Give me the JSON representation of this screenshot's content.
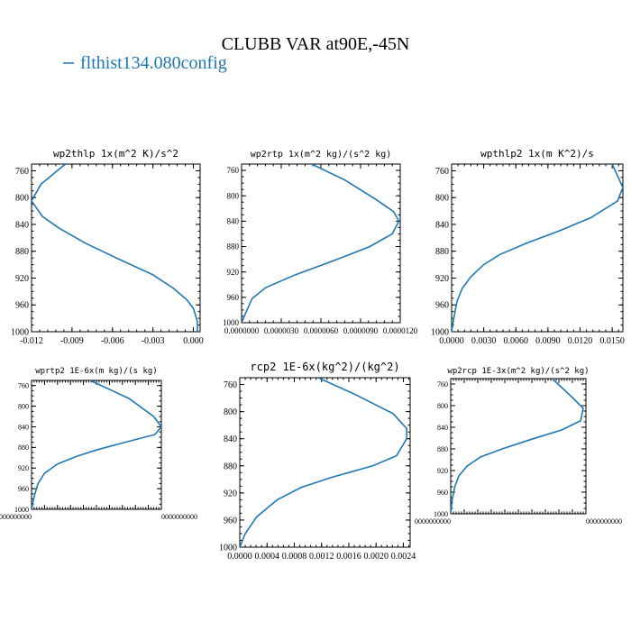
{
  "figure": {
    "title": "CLUBB VAR at90E,-45N",
    "legend": [
      {
        "label": "flthist134.080config",
        "color": "#1f77b4"
      }
    ]
  },
  "chart_data": [
    {
      "type": "line",
      "title": "wp2thlp  1x(m^2 K)/s^2",
      "xlim": [
        -0.012,
        0.0005
      ],
      "ylim": [
        1000,
        750
      ],
      "xticks": [
        -0.012,
        -0.009,
        -0.006,
        -0.003,
        0.0
      ],
      "xtick_labels": [
        "-0.012",
        "-0.009",
        "-0.006",
        "-0.003",
        "0.000"
      ],
      "yticks": [
        760,
        800,
        840,
        880,
        920,
        960,
        1000
      ],
      "ytick_labels": [
        "760",
        "800",
        "840",
        "880",
        "920",
        "960",
        "1000"
      ],
      "series": [
        {
          "color": "#1f77b4",
          "x": [
            -0.0095,
            -0.0113,
            -0.012,
            -0.0112,
            -0.01,
            -0.008,
            -0.0055,
            -0.003,
            -0.0015,
            -0.0005,
            0.0,
            0.0003,
            0.0003
          ],
          "y": [
            750,
            780,
            805,
            828,
            845,
            868,
            892,
            915,
            935,
            952,
            965,
            985,
            1000
          ]
        }
      ]
    },
    {
      "type": "line",
      "title": "wp2rtp  1x(m^2 kg)/(s^2 kg)",
      "xlim": [
        0.0,
        1.2e-05
      ],
      "ylim": [
        1000,
        750
      ],
      "xticks": [
        0.0,
        3e-06,
        6e-06,
        9e-06,
        1.2e-05
      ],
      "xtick_labels": [
        "0.0000000",
        "0.0000030",
        "0.0000060",
        "0.0000090",
        "0.0000120"
      ],
      "yticks": [
        760,
        800,
        840,
        880,
        920,
        960,
        1000
      ],
      "ytick_labels": [
        "760",
        "800",
        "840",
        "880",
        "920",
        "960",
        "1000"
      ],
      "series": [
        {
          "color": "#1f77b4",
          "x": [
            5.3e-06,
            7.8e-06,
            1.01e-05,
            1.15e-05,
            1.19e-05,
            1.14e-05,
            9.7e-06,
            7e-06,
            4e-06,
            1.8e-06,
            8e-07,
            3e-07,
            0.0
          ],
          "y": [
            750,
            775,
            805,
            825,
            840,
            860,
            880,
            902,
            925,
            945,
            962,
            985,
            1000
          ]
        }
      ]
    },
    {
      "type": "line",
      "title": "wpthlp2  1x(m K^2)/s",
      "xlim": [
        0.0,
        0.016
      ],
      "ylim": [
        1000,
        750
      ],
      "xticks": [
        0.0,
        0.003,
        0.006,
        0.009,
        0.012,
        0.015
      ],
      "xtick_labels": [
        "0.0000",
        "0.0030",
        "0.0060",
        "0.0090",
        "0.0120",
        "0.0150"
      ],
      "yticks": [
        760,
        800,
        840,
        880,
        920,
        960,
        1000
      ],
      "ytick_labels": [
        "760",
        "800",
        "840",
        "880",
        "920",
        "960",
        "1000"
      ],
      "series": [
        {
          "color": "#1f77b4",
          "x": [
            0.015,
            0.016,
            0.0155,
            0.013,
            0.01,
            0.007,
            0.0045,
            0.003,
            0.0018,
            0.001,
            0.0005,
            0.0002,
            0.0
          ],
          "y": [
            750,
            785,
            805,
            830,
            850,
            868,
            885,
            900,
            918,
            935,
            955,
            980,
            1000
          ]
        }
      ]
    },
    {
      "type": "line",
      "title": "wprtp2  1E-6x(m kg)/(s kg)",
      "xlim": [
        0.0,
        1.0
      ],
      "ylim": [
        1000,
        750
      ],
      "xticks": [
        0.0,
        0.1,
        0.2,
        0.3,
        0.4,
        0.5,
        0.6,
        0.7,
        0.8,
        0.9,
        1.0
      ],
      "xtick_labels": [
        "0000000000",
        "",
        "",
        "",
        "",
        "",
        "",
        "",
        "",
        "",
        "0000000000"
      ],
      "yticks": [
        760,
        800,
        840,
        880,
        920,
        960,
        1000
      ],
      "ytick_labels": [
        "760",
        "800",
        "840",
        "880",
        "920",
        "960",
        "1000"
      ],
      "series": [
        {
          "color": "#1f77b4",
          "x": [
            0.45,
            0.75,
            0.94,
            1.0,
            0.95,
            0.72,
            0.5,
            0.35,
            0.2,
            0.1,
            0.05,
            0.02,
            0.0
          ],
          "y": [
            750,
            785,
            820,
            840,
            855,
            870,
            885,
            897,
            912,
            930,
            950,
            975,
            1000
          ]
        }
      ]
    },
    {
      "type": "line",
      "title": "rcp2  1E-6x(kg^2)/(kg^2)",
      "xlim": [
        0.0,
        0.0025
      ],
      "ylim": [
        1000,
        750
      ],
      "xticks": [
        0.0,
        0.0004,
        0.0008,
        0.0012,
        0.0016,
        0.002,
        0.0024
      ],
      "xtick_labels": [
        "0.0000",
        "0.0004",
        "0.0008",
        "0.0012",
        "0.0016",
        "0.0020",
        "0.0024"
      ],
      "yticks": [
        760,
        800,
        840,
        880,
        920,
        960,
        1000
      ],
      "ytick_labels": [
        "760",
        "800",
        "840",
        "880",
        "920",
        "960",
        "1000"
      ],
      "series": [
        {
          "color": "#1f77b4",
          "x": [
            0.00115,
            0.0017,
            0.00225,
            0.00245,
            0.00245,
            0.0023,
            0.00195,
            0.00135,
            0.0009,
            0.00055,
            0.00025,
            8e-05,
            0.0
          ],
          "y": [
            750,
            775,
            803,
            825,
            840,
            865,
            880,
            897,
            912,
            930,
            955,
            980,
            1000
          ]
        }
      ]
    },
    {
      "type": "line",
      "title": "wp2rcp  1E-3x(m^2 kg)/(s^2 kg)",
      "xlim": [
        0.0,
        1.0
      ],
      "ylim": [
        1000,
        750
      ],
      "xticks": [
        0.0,
        0.1,
        0.2,
        0.3,
        0.4,
        0.5,
        0.6,
        0.7,
        0.8,
        0.9,
        1.0
      ],
      "xtick_labels": [
        "0000000000",
        "",
        "",
        "",
        "",
        "",
        "",
        "",
        "",
        "",
        "0000000000"
      ],
      "yticks": [
        760,
        800,
        840,
        880,
        920,
        960,
        1000
      ],
      "ytick_labels": [
        "760",
        "800",
        "840",
        "880",
        "920",
        "960",
        "1000"
      ],
      "series": [
        {
          "color": "#1f77b4",
          "x": [
            0.75,
            0.9,
            0.98,
            0.96,
            0.82,
            0.6,
            0.38,
            0.22,
            0.12,
            0.06,
            0.03,
            0.01,
            0.0
          ],
          "y": [
            750,
            785,
            805,
            828,
            845,
            862,
            880,
            895,
            912,
            930,
            950,
            975,
            1000
          ]
        }
      ]
    }
  ]
}
